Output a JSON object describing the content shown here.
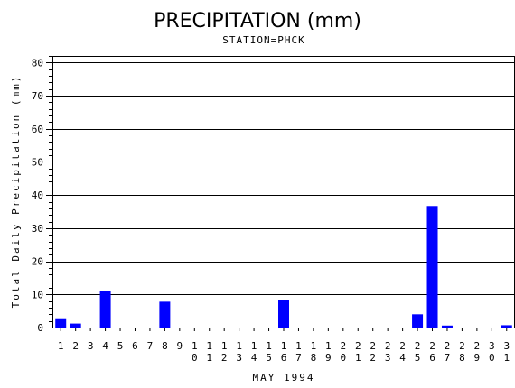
{
  "chart_data": {
    "type": "bar",
    "title": "PRECIPITATION (mm)",
    "subtitle": "STATION=PHCK",
    "xlabel": "MAY 1994",
    "ylabel": "Total Daily Precipitation (mm)",
    "categories": [
      "1",
      "2",
      "3",
      "4",
      "5",
      "6",
      "7",
      "8",
      "9",
      "10",
      "11",
      "12",
      "13",
      "14",
      "15",
      "16",
      "17",
      "18",
      "19",
      "20",
      "21",
      "22",
      "23",
      "24",
      "25",
      "26",
      "27",
      "28",
      "29",
      "30",
      "31"
    ],
    "values": [
      2.8,
      1.2,
      0,
      11,
      0,
      0,
      0,
      7.8,
      0,
      0,
      0,
      0,
      0,
      0,
      0,
      8.3,
      0,
      0,
      0,
      0,
      0,
      0,
      0,
      0,
      4,
      36.7,
      0.6,
      0,
      0,
      0,
      0.7
    ],
    "ylim": [
      0,
      82
    ],
    "yticks": [
      0,
      10,
      20,
      30,
      40,
      50,
      60,
      70,
      80
    ],
    "grid": true,
    "bar_color": "#0000ff"
  }
}
